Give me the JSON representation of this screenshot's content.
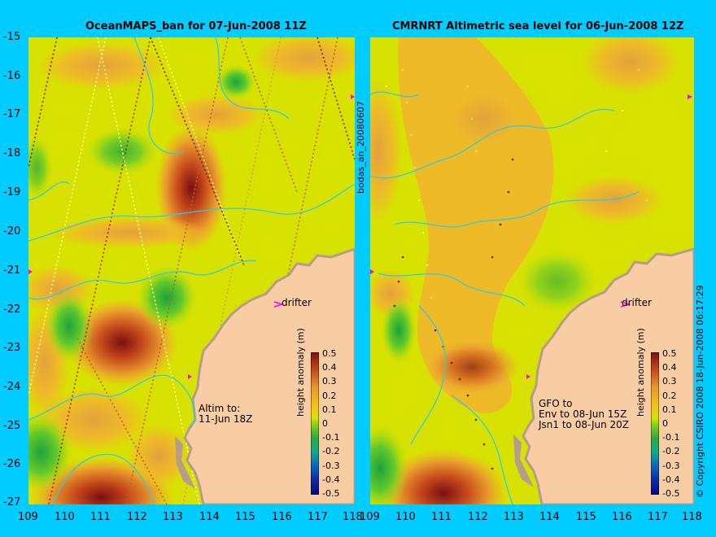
{
  "left_panel": {
    "title": "OceanMAPS_ban for 07-Jun-2008 11Z",
    "annotation": "Altim to:\n11-Jun 18Z",
    "drifter_label": "drifter"
  },
  "right_panel": {
    "title": "CMRNRT Altimetric sea level  for 06-Jun-2008 12Z",
    "annotation": "GFO to\nEnv to 08-Jun 15Z\nJsn1 to 08-Jun 20Z",
    "drifter_label": "drifter"
  },
  "axes": {
    "y_ticks": [
      "-15",
      "-16",
      "-17",
      "-18",
      "-19",
      "-20",
      "-21",
      "-22",
      "-23",
      "-24",
      "-25",
      "-26",
      "-27"
    ],
    "x_ticks": [
      "109",
      "110",
      "111",
      "112",
      "113",
      "114",
      "115",
      "116",
      "117",
      "118"
    ]
  },
  "colorbar": {
    "label": "height anomaly (m)",
    "ticks": [
      "0.5",
      "0.4",
      "0.3",
      "0.2",
      "0.1",
      "0",
      "-0.1",
      "-0.2",
      "-0.3",
      "-0.4",
      "-0.5"
    ]
  },
  "side_text": {
    "run_id": "bodas_an_20080607",
    "copyright": "© Copyright CSIRO 2008  18-Jun-2008 06:17:29"
  },
  "colors": {
    "background": "#00ccff",
    "land": "#f9cda4",
    "coast": "#b39d8c",
    "contour": "#33ccdd",
    "base_field": "#d8e200",
    "drifter": "#ff00ff"
  }
}
